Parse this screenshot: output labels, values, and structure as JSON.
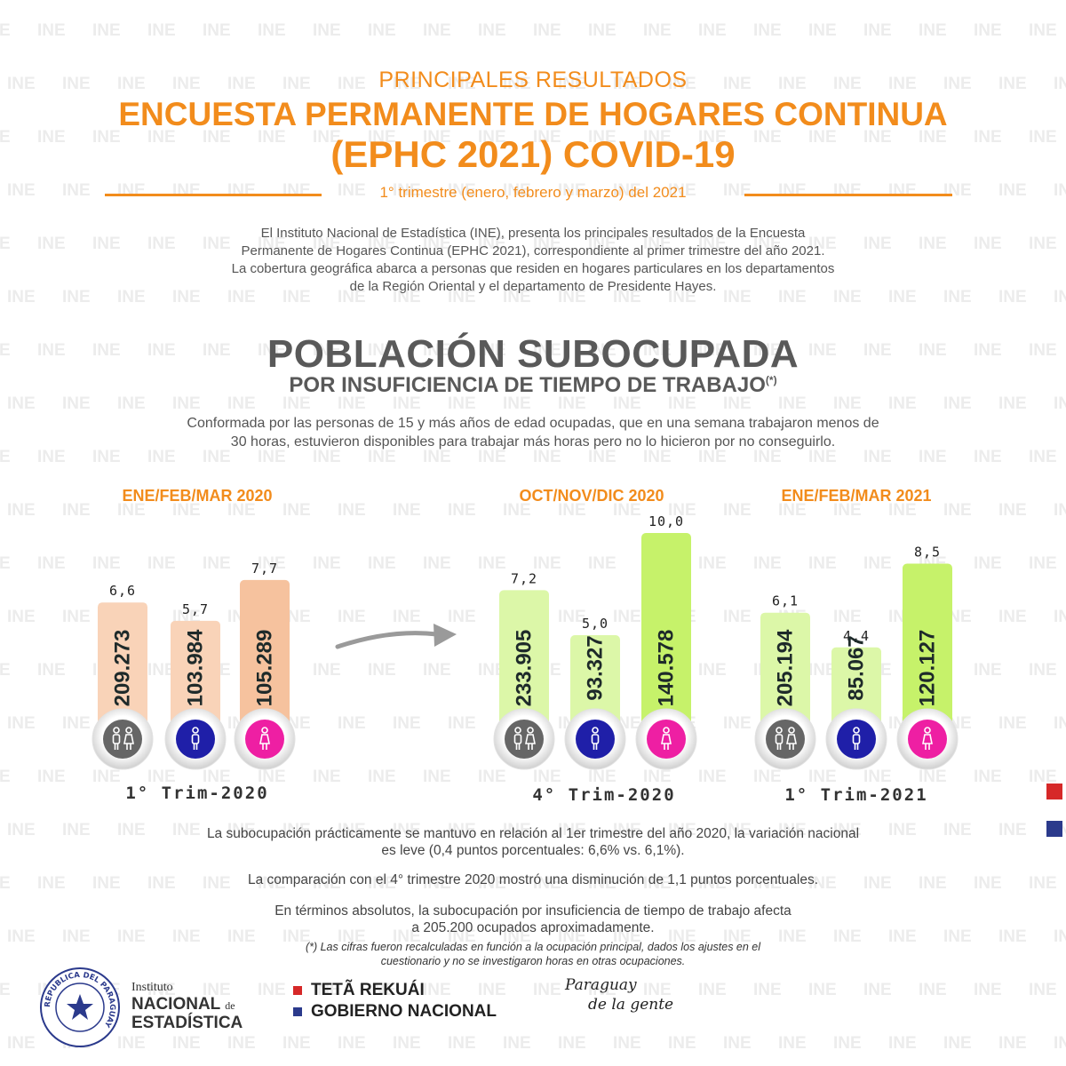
{
  "watermark_text": "INE",
  "header": {
    "kicker": "PRINCIPALES RESULTADOS",
    "title_line1": "ENCUESTA PERMANENTE DE HOGARES CONTINUA",
    "title_line2": "(EPHC 2021) COVID-19",
    "subtitle": "1° trimestre (enero, febrero y marzo) del 2021",
    "accent_color": "#f28c1c"
  },
  "intro": {
    "line1": "El Instituto Nacional de Estadística (INE), presenta los principales resultados de la Encuesta",
    "line2": "Permanente de Hogares Continua (EPHC 2021), correspondiente al primer trimestre del año 2021.",
    "line3": "La cobertura geográfica abarca a personas que residen en hogares particulares en los departamentos",
    "line4": "de la Región Oriental y el departamento de Presidente Hayes."
  },
  "section": {
    "title": "POBLACIÓN SUBOCUPADA",
    "subtitle": "POR INSUFICIENCIA DE TIEMPO DE TRABAJO",
    "subtitle_mark": "(*)",
    "desc_line1": "Conformada por las personas de 15 y más años de edad ocupadas, que en una semana trabajaron menos de",
    "desc_line2": "30 horas, estuvieron disponibles para trabajar más horas pero no lo hicieron por no conseguirlo."
  },
  "chart_data": [
    {
      "type": "bar",
      "heading": "ENE/FEB/MAR 2020",
      "period_label": "1° Trim-2020",
      "categories": [
        "Total",
        "Hombres",
        "Mujeres"
      ],
      "icons": [
        "people-icon",
        "man-icon",
        "woman-icon"
      ],
      "values": [
        6.6,
        5.7,
        7.7
      ],
      "value_labels": [
        "6,6",
        "5,7",
        "7,7"
      ],
      "counts": [
        "209.273",
        "103.984",
        "105.289"
      ],
      "bar_color": "#f9d3b8",
      "bar_color_emph": "#f6c29e"
    },
    {
      "type": "bar",
      "heading": "OCT/NOV/DIC 2020",
      "period_label": "4° Trim-2020",
      "categories": [
        "Total",
        "Hombres",
        "Mujeres"
      ],
      "icons": [
        "people-icon",
        "man-icon",
        "woman-icon"
      ],
      "values": [
        7.2,
        5.0,
        10.0
      ],
      "value_labels": [
        "7,2",
        "5,0",
        "10,0"
      ],
      "counts": [
        "233.905",
        "93.327",
        "140.578"
      ],
      "bar_color": "#dcf7a8",
      "bar_color_emph": "#c6f26a"
    },
    {
      "type": "bar",
      "heading": "ENE/FEB/MAR 2021",
      "period_label": "1° Trim-2021",
      "categories": [
        "Total",
        "Hombres",
        "Mujeres"
      ],
      "icons": [
        "people-icon",
        "man-icon",
        "woman-icon"
      ],
      "values": [
        6.1,
        4.4,
        8.5
      ],
      "value_labels": [
        "6,1",
        "4,4",
        "8,5"
      ],
      "counts": [
        "205.194",
        "85.067",
        "120.127"
      ],
      "bar_color": "#dcf7a8",
      "bar_color_emph": "#c6f26a"
    }
  ],
  "icon_colors": {
    "total": "#666666",
    "men": "#1f1fa8",
    "women": "#ee1fa3"
  },
  "notes": {
    "n1_line1": "La subocupación prácticamente se mantuvo en relación al 1er trimestre del año 2020, la variación nacional",
    "n1_line2": "es leve (0,4 puntos porcentuales: 6,6% vs. 6,1%).",
    "n2": "La comparación con el  4° trimestre 2020 mostró una disminución de 1,1 puntos porcentuales.",
    "n3_line1": "En términos absolutos, la subocupación por insuficiencia de tiempo de trabajo afecta",
    "n3_line2": "a 205.200 ocupados aproximadamente.",
    "footnote_line1": "(*)  Las cifras fueron recalculadas en función a la ocupación principal, dados los ajustes en el",
    "footnote_line2": "cuestionario  y no se investigaron horas en otras ocupaciones."
  },
  "footer": {
    "seal_text": "REPUBLICA DEL PARAGUAY",
    "ine_line1": "Instituto",
    "ine_line2": "NACIONAL",
    "ine_de": "de",
    "ine_line3": "ESTADÍSTICA",
    "gov_line1": "TETÃ REKUÁI",
    "gov_line2": "GOBIERNO NACIONAL",
    "slogan_line1": "Paraguay",
    "slogan_line2": "de la gente",
    "flag_red": "#d62828",
    "flag_blue": "#2b3a8c"
  }
}
